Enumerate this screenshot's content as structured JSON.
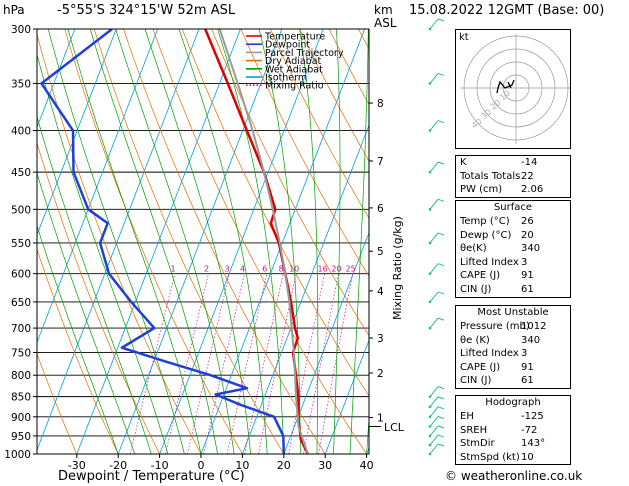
{
  "header": {
    "hpa_label": "hPa",
    "location": "-5°55'S 324°15'W 52m ASL",
    "km_label": "km",
    "asl_label": "ASL",
    "datetime": "15.08.2022 12GMT (Base: 00)"
  },
  "chart_data": {
    "type": "line",
    "xlabel": "Dewpoint / Temperature (°C)",
    "y2label": "Mixing Ratio (g/kg)",
    "xlim": [
      -35,
      40
    ],
    "ylim": [
      1000,
      300
    ],
    "y_scale": "log",
    "x_ticks": [
      "-30",
      "-20",
      "-10",
      "0",
      "10",
      "20",
      "30",
      "40"
    ],
    "y_ticks": [
      "300",
      "350",
      "400",
      "450",
      "500",
      "550",
      "600",
      "650",
      "700",
      "750",
      "800",
      "850",
      "900",
      "950",
      "1000"
    ],
    "km_ticks": [
      {
        "p": 370,
        "label": "8"
      },
      {
        "p": 436,
        "label": "7"
      },
      {
        "p": 498,
        "label": "6"
      },
      {
        "p": 563,
        "label": "5"
      },
      {
        "p": 630,
        "label": "4"
      },
      {
        "p": 720,
        "label": "3"
      },
      {
        "p": 795,
        "label": "2"
      },
      {
        "p": 902,
        "label": "1"
      }
    ],
    "lcl": {
      "p": 925,
      "label": "LCL"
    },
    "mixing_ratio_labels": [
      "1",
      "2",
      "3",
      "4",
      "6",
      "8",
      "10",
      "16",
      "20",
      "25"
    ],
    "legend_position": "top-left",
    "legend": [
      {
        "name": "Temperature",
        "color": "#dd0000"
      },
      {
        "name": "Dewpoint",
        "color": "#1f3fd6"
      },
      {
        "name": "Parcel Trajectory",
        "color": "#9a9a9a"
      },
      {
        "name": "Dry Adiabat",
        "color": "#e07000"
      },
      {
        "name": "Wet Adiabat",
        "color": "#00a000"
      },
      {
        "name": "Isotherm",
        "color": "#00a0e0"
      },
      {
        "name": "Mixing Ratio",
        "color": "#c0148c"
      }
    ],
    "series": [
      {
        "name": "Temperature",
        "color": "#dd0000",
        "points": [
          {
            "p": 1000,
            "t": 25.8
          },
          {
            "p": 960,
            "t": 22.8
          },
          {
            "p": 925,
            "t": 21.2
          },
          {
            "p": 900,
            "t": 20.0
          },
          {
            "p": 850,
            "t": 18.2
          },
          {
            "p": 800,
            "t": 15.6
          },
          {
            "p": 750,
            "t": 12.8
          },
          {
            "p": 720,
            "t": 12.6
          },
          {
            "p": 700,
            "t": 11.0
          },
          {
            "p": 650,
            "t": 7.6
          },
          {
            "p": 600,
            "t": 3.6
          },
          {
            "p": 550,
            "t": -0.8
          },
          {
            "p": 520,
            "t": -4.6
          },
          {
            "p": 500,
            "t": -4.8
          },
          {
            "p": 450,
            "t": -11.0
          },
          {
            "p": 400,
            "t": -19.0
          },
          {
            "p": 350,
            "t": -28.0
          },
          {
            "p": 300,
            "t": -38.5
          }
        ]
      },
      {
        "name": "Dewpoint",
        "color": "#1f3fd6",
        "points": [
          {
            "p": 1000,
            "t": 20.0
          },
          {
            "p": 950,
            "t": 18.2
          },
          {
            "p": 900,
            "t": 14.2
          },
          {
            "p": 870,
            "t": 5.0
          },
          {
            "p": 845,
            "t": -2.0
          },
          {
            "p": 830,
            "t": 5.0
          },
          {
            "p": 800,
            "t": -5.0
          },
          {
            "p": 770,
            "t": -17.0
          },
          {
            "p": 740,
            "t": -29.0
          },
          {
            "p": 700,
            "t": -23.0
          },
          {
            "p": 650,
            "t": -31.0
          },
          {
            "p": 600,
            "t": -39.0
          },
          {
            "p": 550,
            "t": -44.0
          },
          {
            "p": 520,
            "t": -44.0
          },
          {
            "p": 500,
            "t": -50.0
          },
          {
            "p": 450,
            "t": -57.0
          },
          {
            "p": 400,
            "t": -61.0
          },
          {
            "p": 350,
            "t": -73.0
          },
          {
            "p": 300,
            "t": -61.0
          }
        ]
      },
      {
        "name": "Parcel Trajectory",
        "color": "#9a9a9a",
        "points": [
          {
            "p": 1000,
            "t": 25.8
          },
          {
            "p": 925,
            "t": 21.0
          },
          {
            "p": 850,
            "t": 17.6
          },
          {
            "p": 800,
            "t": 15.4
          },
          {
            "p": 750,
            "t": 13.0
          },
          {
            "p": 700,
            "t": 10.2
          },
          {
            "p": 650,
            "t": 7.2
          },
          {
            "p": 600,
            "t": 3.6
          },
          {
            "p": 550,
            "t": -0.6
          },
          {
            "p": 500,
            "t": -5.4
          },
          {
            "p": 450,
            "t": -11.0
          },
          {
            "p": 400,
            "t": -17.6
          },
          {
            "p": 350,
            "t": -25.6
          },
          {
            "p": 300,
            "t": -35.0
          }
        ]
      }
    ],
    "hodograph": {
      "unit_label": "kt",
      "ring_labels": [
        "10",
        "20",
        "30",
        "40"
      ]
    }
  },
  "indices": {
    "rows": [
      {
        "label": "K",
        "value": "-14"
      },
      {
        "label": "Totals Totals",
        "value": "22"
      },
      {
        "label": "PW (cm)",
        "value": "2.06"
      }
    ]
  },
  "surface": {
    "title": "Surface",
    "rows": [
      {
        "label": "Temp (°C)",
        "value": "26"
      },
      {
        "label": "Dewp (°C)",
        "value": "20"
      },
      {
        "label": "θe(K)",
        "value": "340"
      },
      {
        "label": "Lifted Index",
        "value": "3"
      },
      {
        "label": "CAPE (J)",
        "value": "91"
      },
      {
        "label": "CIN (J)",
        "value": "61"
      }
    ]
  },
  "most_unstable": {
    "title": "Most Unstable",
    "rows": [
      {
        "label": "Pressure (mb)",
        "value": "1012"
      },
      {
        "label": "θe (K)",
        "value": "340"
      },
      {
        "label": "Lifted Index",
        "value": "3"
      },
      {
        "label": "CAPE (J)",
        "value": "91"
      },
      {
        "label": "CIN (J)",
        "value": "61"
      }
    ]
  },
  "hodograph_table": {
    "title": "Hodograph",
    "rows": [
      {
        "label": "EH",
        "value": "-125"
      },
      {
        "label": "SREH",
        "value": "-72"
      },
      {
        "label": "StmDir",
        "value": "143°"
      },
      {
        "label": "StmSpd (kt)",
        "value": "10"
      }
    ]
  },
  "credit": "© weatheronline.co.uk"
}
